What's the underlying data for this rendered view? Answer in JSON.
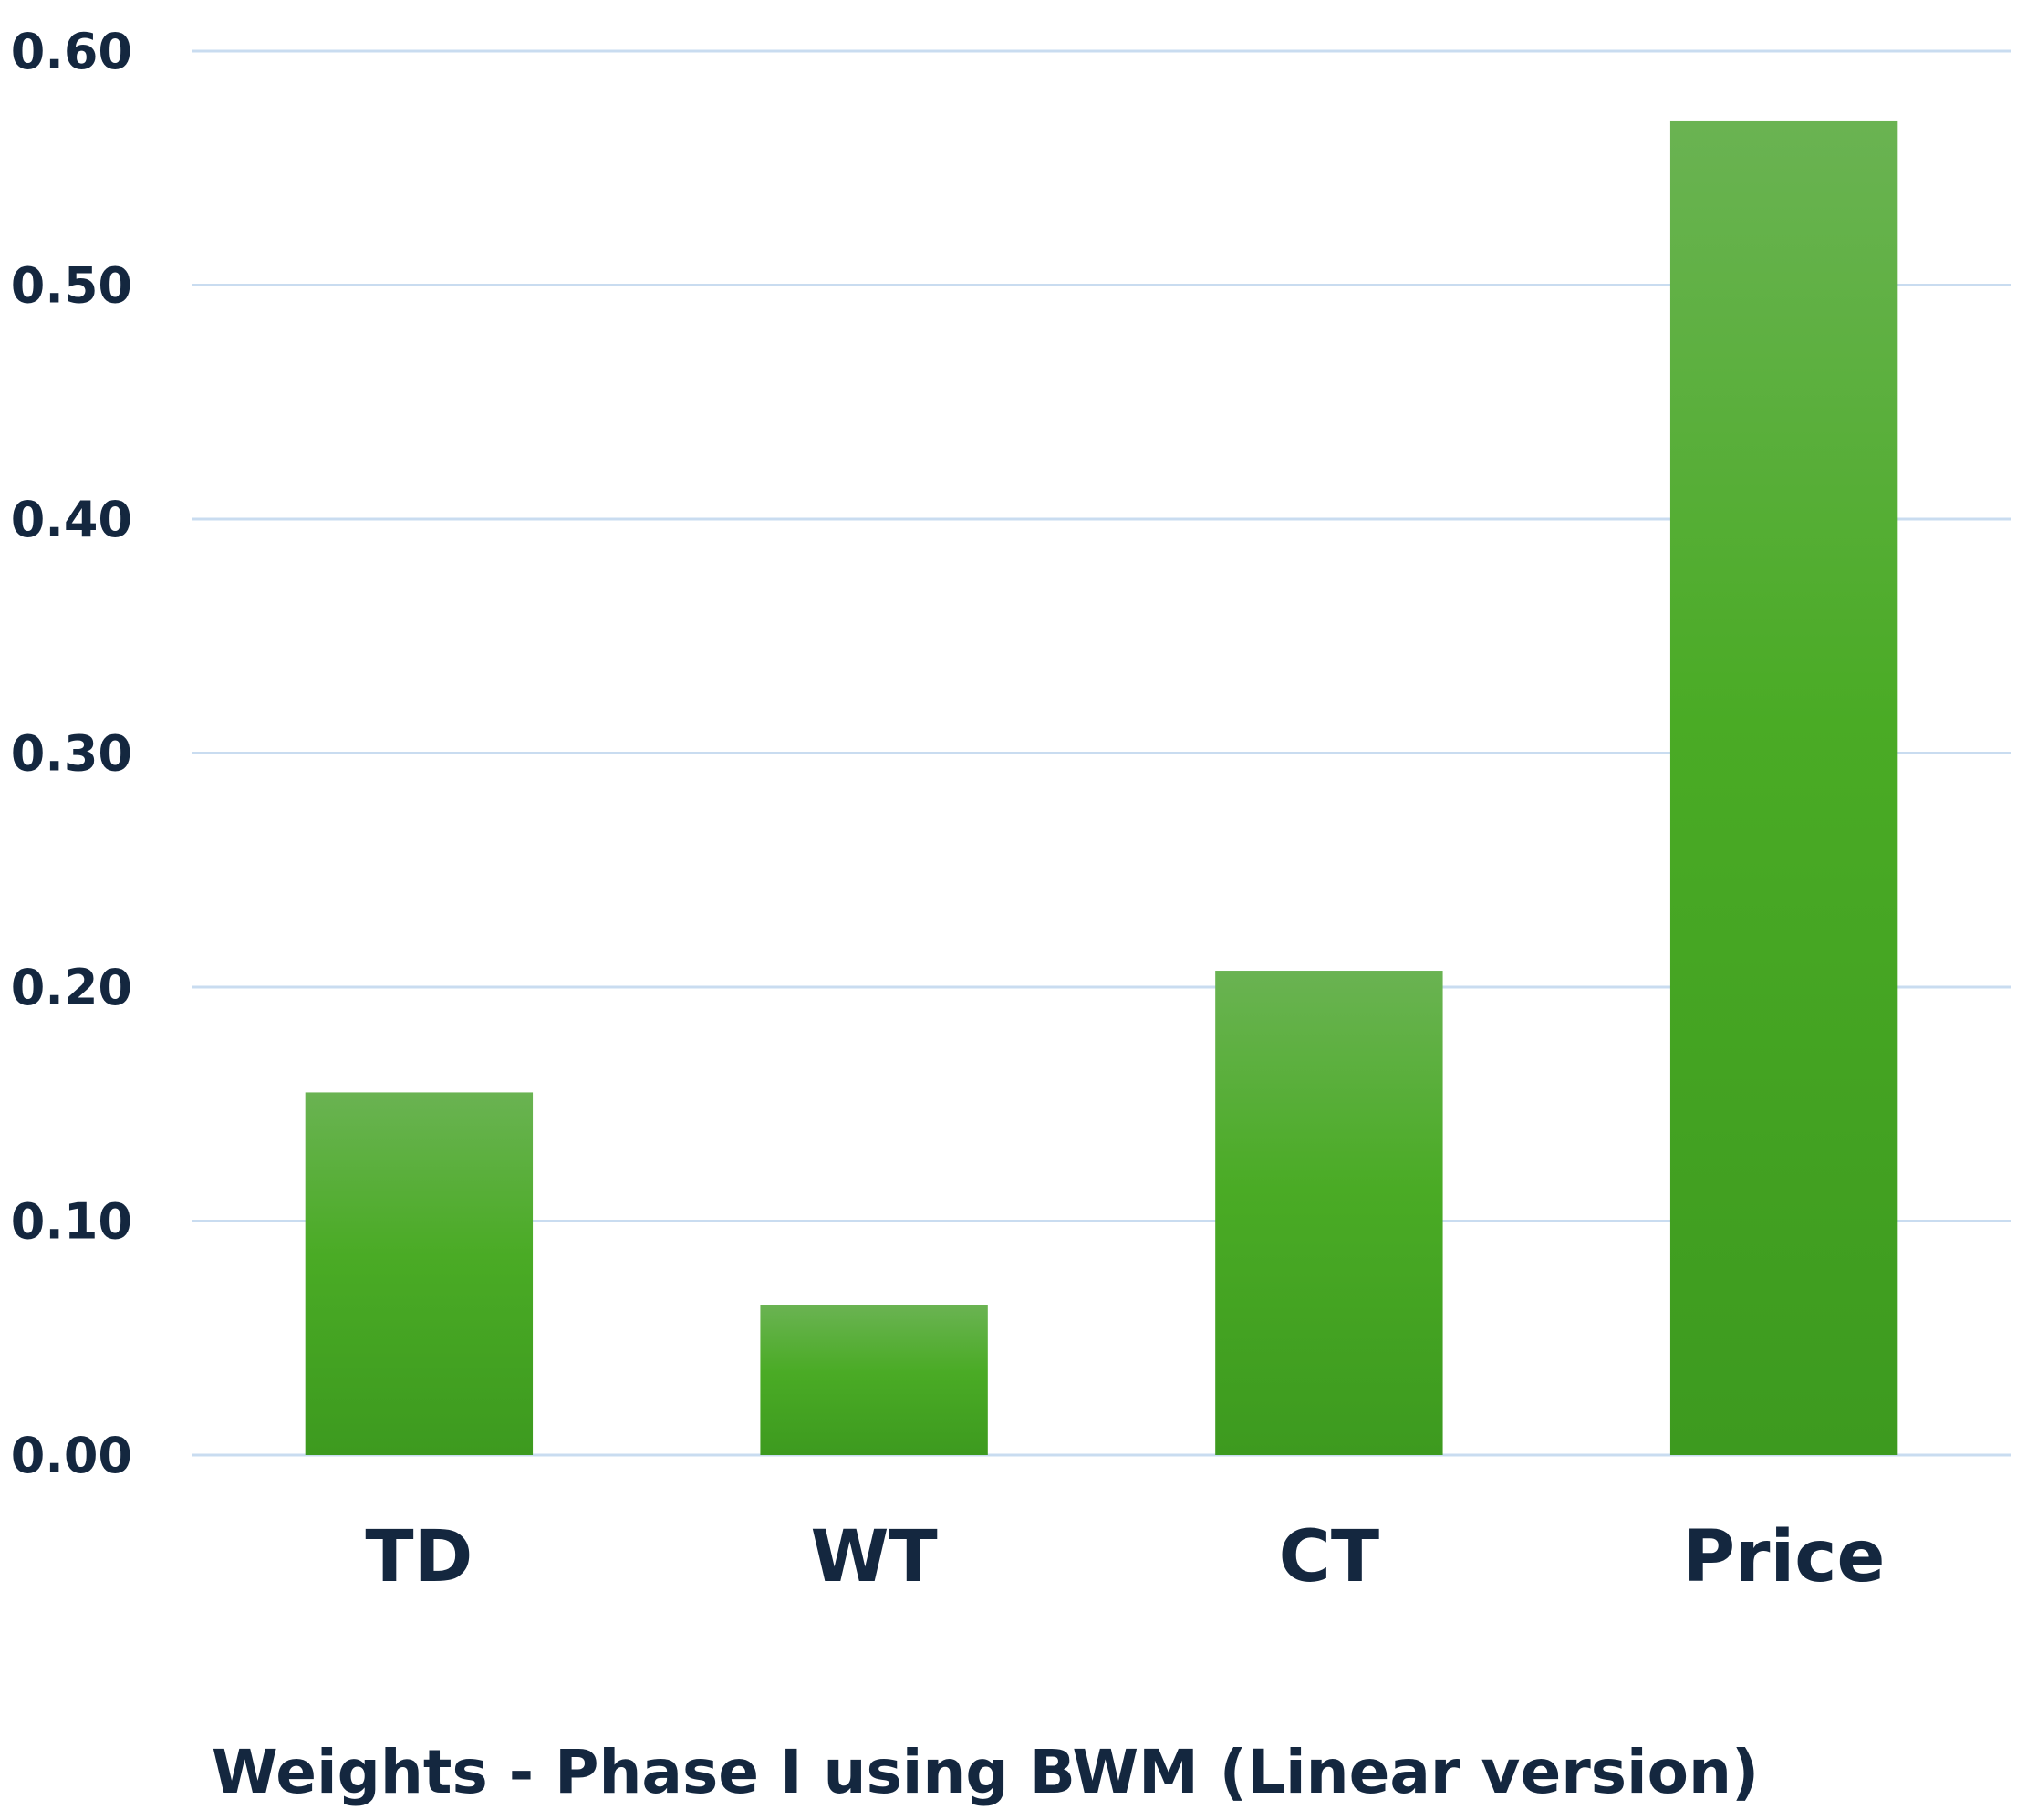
{
  "chart_data": {
    "type": "bar",
    "title": "Weights - Phase I using BWM (Linear version)",
    "categories": [
      "TD",
      "WT",
      "CT",
      "Price"
    ],
    "values": [
      0.155,
      0.064,
      0.207,
      0.57
    ],
    "ylim": [
      0,
      0.6
    ],
    "yticks": [
      "0.00",
      "0.10",
      "0.20",
      "0.30",
      "0.40",
      "0.50",
      "0.60"
    ],
    "grid": true,
    "legend": "none",
    "colors": {
      "bar_top": "#6ab352",
      "bar_bottom": "#3d9a1f",
      "grid": "#c9dcf0",
      "text": "#14273f"
    }
  }
}
